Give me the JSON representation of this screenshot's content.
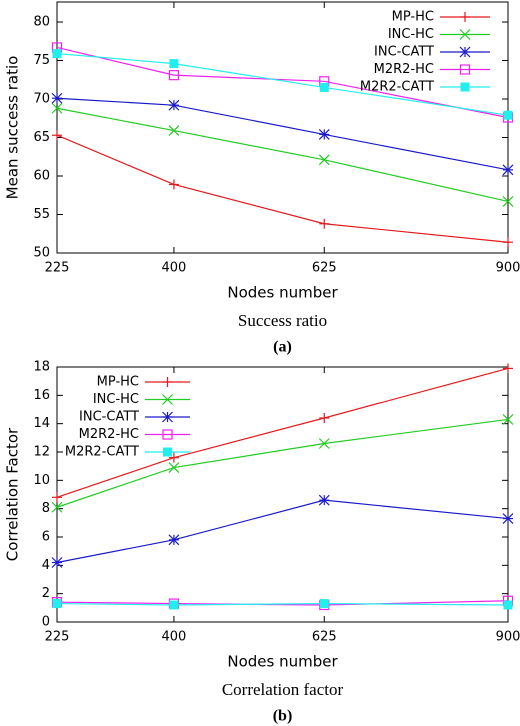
{
  "chart_data": [
    {
      "type": "line",
      "ylabel": "Mean success ratio",
      "xlabel": "Nodes number",
      "caption": "Success ratio",
      "panel": "(a)",
      "x": [
        225,
        400,
        625,
        900
      ],
      "xlim": [
        225,
        900
      ],
      "xticks": [
        225,
        400,
        625,
        900
      ],
      "ylim": [
        50,
        82.6
      ],
      "yticks": [
        50,
        55,
        60,
        65,
        70,
        75,
        80
      ],
      "legend": "upper right",
      "series": [
        {
          "name": "MP-HC",
          "color": "#e41a1c",
          "marker": "plus",
          "values": [
            65.3,
            58.9,
            53.8,
            51.4
          ]
        },
        {
          "name": "INC-HC",
          "color": "#22cc22",
          "marker": "cross",
          "values": [
            68.8,
            65.9,
            62.1,
            56.7
          ]
        },
        {
          "name": "INC-CATT",
          "color": "#1a1acc",
          "marker": "star",
          "values": [
            70.1,
            69.2,
            65.4,
            60.8
          ]
        },
        {
          "name": "M2R2-HC",
          "color": "#ee22ee",
          "marker": "square",
          "values": [
            76.7,
            73.1,
            72.3,
            67.6
          ]
        },
        {
          "name": "M2R2-CATT",
          "color": "#22eeee",
          "marker": "filled-square",
          "values": [
            75.9,
            74.6,
            71.5,
            67.9
          ]
        }
      ]
    },
    {
      "type": "line",
      "ylabel": "Correlation Factor",
      "xlabel": "Nodes number",
      "caption": "Correlation factor",
      "panel": "(b)",
      "x": [
        225,
        400,
        625,
        900
      ],
      "xlim": [
        225,
        900
      ],
      "xticks": [
        225,
        400,
        625,
        900
      ],
      "ylim": [
        0,
        18
      ],
      "yticks": [
        0,
        2,
        4,
        6,
        8,
        10,
        12,
        14,
        16,
        18
      ],
      "legend": "upper left",
      "series": [
        {
          "name": "MP-HC",
          "color": "#e41a1c",
          "marker": "plus",
          "values": [
            8.8,
            11.6,
            14.4,
            17.9
          ]
        },
        {
          "name": "INC-HC",
          "color": "#22cc22",
          "marker": "cross",
          "values": [
            8.1,
            10.9,
            12.6,
            14.3
          ]
        },
        {
          "name": "INC-CATT",
          "color": "#1a1acc",
          "marker": "star",
          "values": [
            4.2,
            5.8,
            8.6,
            7.3
          ]
        },
        {
          "name": "M2R2-HC",
          "color": "#ee22ee",
          "marker": "square",
          "values": [
            1.4,
            1.3,
            1.2,
            1.5
          ]
        },
        {
          "name": "M2R2-CATT",
          "color": "#22eeee",
          "marker": "filled-square",
          "values": [
            1.3,
            1.2,
            1.3,
            1.2
          ]
        }
      ]
    }
  ]
}
